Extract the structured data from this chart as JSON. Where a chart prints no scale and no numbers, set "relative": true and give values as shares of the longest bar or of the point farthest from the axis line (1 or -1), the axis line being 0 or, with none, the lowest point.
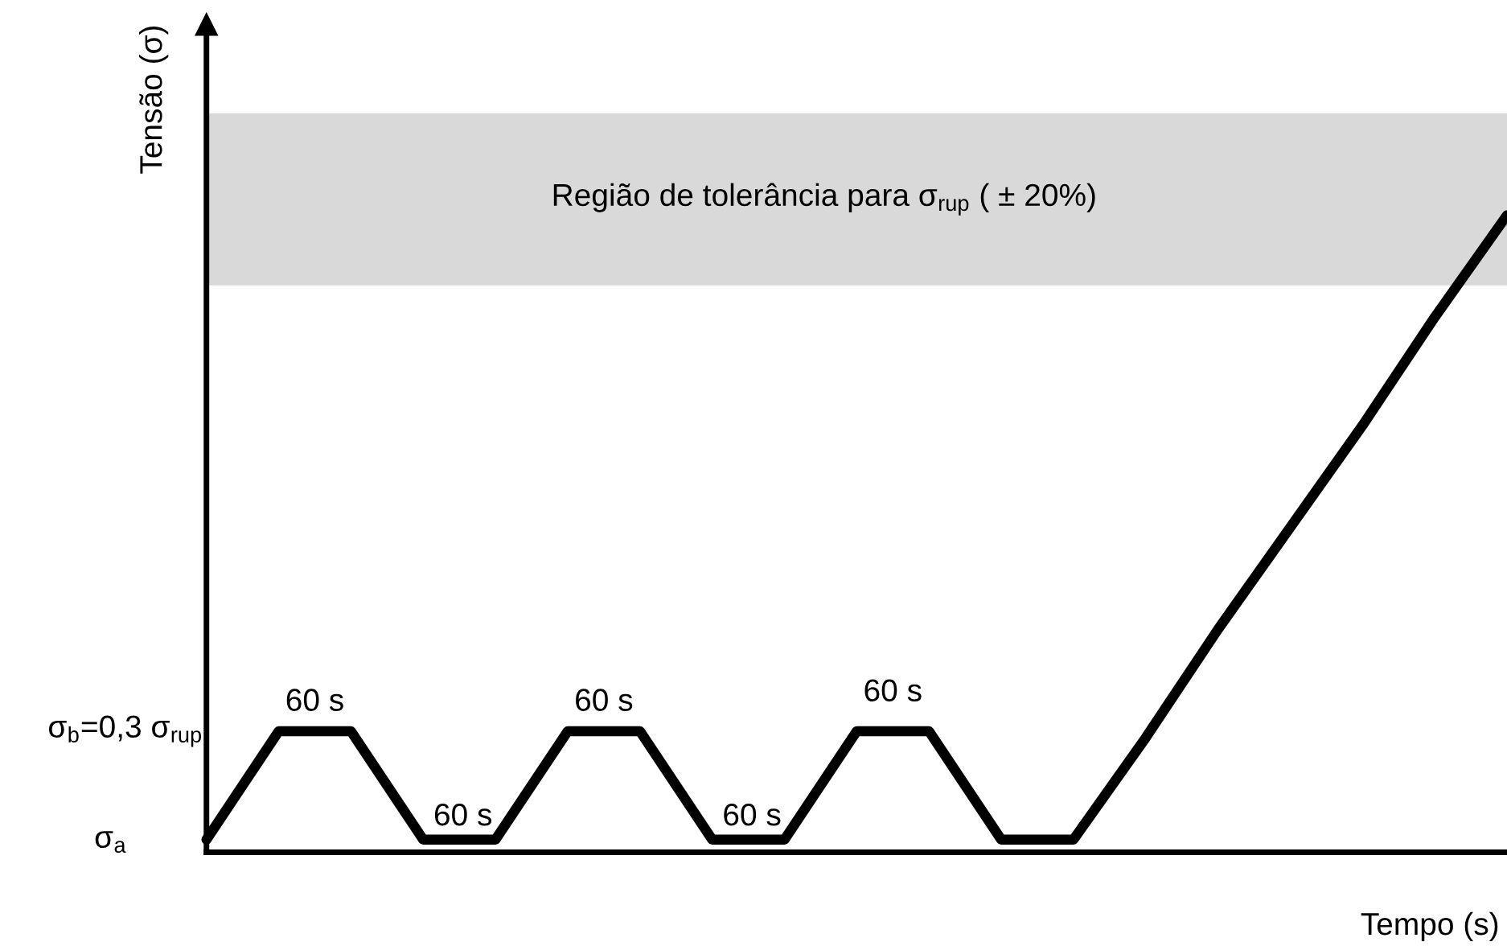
{
  "chart_data": {
    "type": "line",
    "relative": true,
    "xlabel": "Tempo (s)",
    "ylabel": "Tensão (σ)",
    "categories": [
      null,
      null,
      null,
      null,
      null,
      null,
      null,
      null,
      null,
      null,
      null,
      null,
      null,
      null,
      null,
      null,
      null,
      null,
      null
    ],
    "series": [
      {
        "color": "#000000",
        "values": [
          0.02,
          0.19,
          0.19,
          0.02,
          0.02,
          0.19,
          0.19,
          0.02,
          0.02,
          0.19,
          0.19,
          0.02,
          0.02,
          0.18,
          0.35,
          0.51,
          0.67,
          0.84,
          1
        ]
      }
    ],
    "bands": [
      {
        "axis": "y",
        "from": 0.89,
        "to": 1.16,
        "label": "Região de tolerância para σ$_{rup}$ ( ± 20%)",
        "color": "#d9d9d9"
      }
    ],
    "annotations": [
      "60 s",
      "60 s",
      "60 s",
      "60 s",
      "60 s",
      "σ$_{b}$=0,3 σ$_{rup}$",
      "σ$_{a}$"
    ],
    "legend": false,
    "marker": "none",
    "line_style": "solid"
  }
}
